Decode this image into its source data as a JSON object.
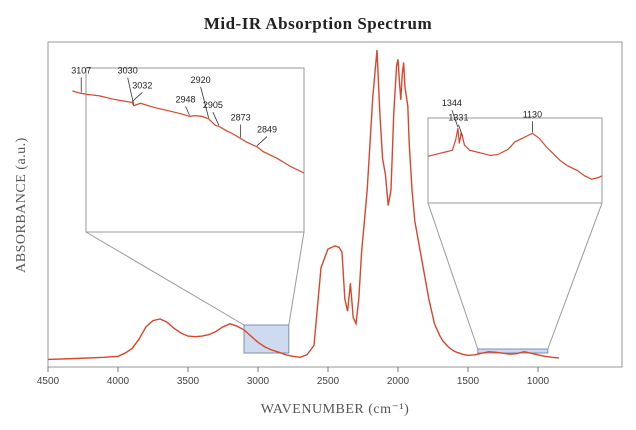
{
  "chart_data": {
    "type": "line",
    "title": "Mid-IR Absorption Spectrum",
    "xlabel": "WAVENUMBER (cm⁻¹)",
    "ylabel": "ABSORBANCE (a.u.)",
    "xlim": [
      4500,
      400
    ],
    "ylim": [
      0,
      1
    ],
    "x_ticks": [
      "4500",
      "4000",
      "3500",
      "3000",
      "2500",
      "2000",
      "1500",
      "1000"
    ],
    "grid": false,
    "colors": {
      "line": "#d9462c",
      "highlight_fill": "#c6d3ea",
      "highlight_stroke": "#7d8fb8",
      "frame": "#9a9a9a"
    },
    "series": [
      {
        "x": [
          4500,
          4300,
          4100,
          4000,
          3950,
          3900,
          3850,
          3800,
          3750,
          3700,
          3650,
          3600,
          3550,
          3500,
          3450,
          3400,
          3350,
          3300,
          3250,
          3200,
          3150,
          3100,
          3050,
          3000,
          2950,
          2900,
          2850,
          2800,
          2750,
          2700,
          2650,
          2600,
          2550,
          2500,
          2450,
          2420,
          2400,
          2380,
          2360,
          2340,
          2320,
          2300,
          2280,
          2260,
          2240,
          2220,
          2200,
          2180,
          2160,
          2150,
          2140,
          2130,
          2110,
          2090,
          2070,
          2050,
          2030,
          2010,
          2000,
          1990,
          1980,
          1970,
          1960,
          1950,
          1940,
          1930,
          1920,
          1900,
          1880,
          1860,
          1840,
          1820,
          1800,
          1780,
          1760,
          1740,
          1720,
          1700,
          1680,
          1660,
          1640,
          1620,
          1600,
          1580,
          1560,
          1540,
          1520,
          1500,
          1450,
          1400,
          1350,
          1300,
          1250,
          1200,
          1150,
          1100,
          1050,
          1000,
          950,
          900,
          850
        ],
        "values": [
          0.005,
          0.008,
          0.012,
          0.015,
          0.025,
          0.04,
          0.07,
          0.11,
          0.13,
          0.135,
          0.125,
          0.105,
          0.09,
          0.08,
          0.078,
          0.08,
          0.085,
          0.095,
          0.11,
          0.12,
          0.112,
          0.1,
          0.08,
          0.06,
          0.045,
          0.035,
          0.028,
          0.02,
          0.015,
          0.012,
          0.02,
          0.05,
          0.3,
          0.36,
          0.37,
          0.365,
          0.35,
          0.2,
          0.16,
          0.25,
          0.14,
          0.12,
          0.2,
          0.35,
          0.45,
          0.55,
          0.7,
          0.85,
          0.95,
          1.0,
          0.9,
          0.8,
          0.65,
          0.6,
          0.5,
          0.55,
          0.8,
          0.95,
          0.97,
          0.9,
          0.84,
          0.92,
          0.96,
          0.88,
          0.85,
          0.82,
          0.7,
          0.55,
          0.45,
          0.4,
          0.35,
          0.3,
          0.25,
          0.2,
          0.16,
          0.12,
          0.1,
          0.08,
          0.065,
          0.055,
          0.045,
          0.038,
          0.032,
          0.028,
          0.025,
          0.022,
          0.02,
          0.018,
          0.02,
          0.025,
          0.03,
          0.028,
          0.025,
          0.022,
          0.024,
          0.03,
          0.025,
          0.02,
          0.015,
          0.012,
          0.01
        ]
      }
    ],
    "highlight_regions": [
      [
        3100,
        2780
      ],
      [
        1430,
        930
      ]
    ],
    "insets": [
      {
        "region": [
          3100,
          2780
        ],
        "x": [
          3120,
          3107,
          3100,
          3080,
          3060,
          3040,
          3032,
          3030,
          3020,
          3000,
          2980,
          2960,
          2948,
          2940,
          2930,
          2920,
          2910,
          2905,
          2895,
          2885,
          2873,
          2865,
          2855,
          2849,
          2840,
          2820,
          2800,
          2780
        ],
        "values": [
          0.86,
          0.845,
          0.84,
          0.83,
          0.81,
          0.795,
          0.79,
          0.77,
          0.785,
          0.76,
          0.74,
          0.72,
          0.705,
          0.71,
          0.705,
          0.69,
          0.65,
          0.645,
          0.62,
          0.6,
          0.57,
          0.55,
          0.53,
          0.52,
          0.49,
          0.45,
          0.4,
          0.36
        ],
        "labels": [
          {
            "text": "3107",
            "x": 3107
          },
          {
            "text": "3032",
            "x": 3032
          },
          {
            "text": "3030",
            "x": 3030
          },
          {
            "text": "2948",
            "x": 2948
          },
          {
            "text": "2920",
            "x": 2920
          },
          {
            "text": "2905",
            "x": 2905
          },
          {
            "text": "2873",
            "x": 2873
          },
          {
            "text": "2849",
            "x": 2849
          }
        ]
      },
      {
        "region": [
          1430,
          930
        ],
        "x": [
          1430,
          1400,
          1380,
          1360,
          1350,
          1344,
          1340,
          1335,
          1331,
          1325,
          1310,
          1290,
          1270,
          1250,
          1230,
          1200,
          1180,
          1160,
          1140,
          1130,
          1110,
          1090,
          1070,
          1050,
          1030,
          1000,
          980,
          960,
          940,
          930
        ],
        "values": [
          0.55,
          0.58,
          0.6,
          0.62,
          0.75,
          0.88,
          0.7,
          0.82,
          0.78,
          0.68,
          0.62,
          0.6,
          0.58,
          0.56,
          0.57,
          0.63,
          0.72,
          0.76,
          0.8,
          0.82,
          0.76,
          0.66,
          0.58,
          0.5,
          0.44,
          0.38,
          0.32,
          0.28,
          0.3,
          0.32
        ],
        "labels": [
          {
            "text": "1344",
            "x": 1344
          },
          {
            "text": "1331",
            "x": 1331
          },
          {
            "text": "1130",
            "x": 1130
          }
        ]
      }
    ]
  }
}
